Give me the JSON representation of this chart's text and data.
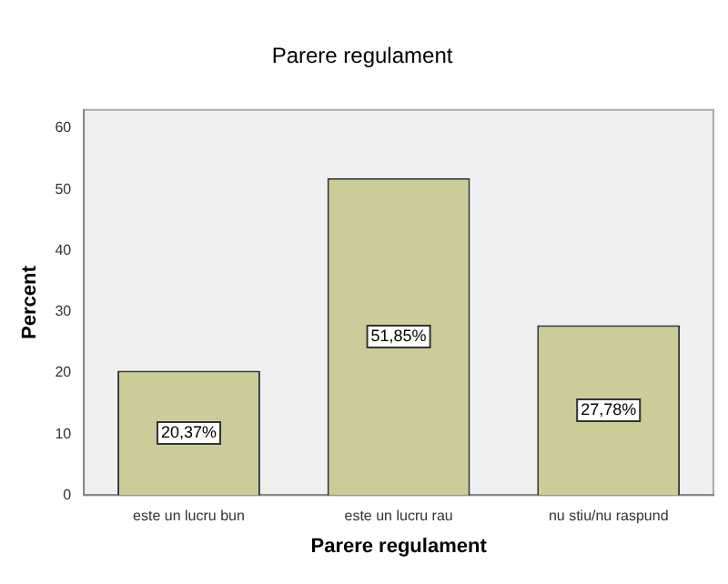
{
  "chart_data": {
    "type": "bar",
    "title": "Parere regulament",
    "xlabel": "Parere regulament",
    "ylabel": "Percent",
    "categories": [
      "este un lucru bun",
      "este un lucru rau",
      "nu stiu/nu raspund"
    ],
    "values": [
      20.37,
      51.85,
      27.78
    ],
    "value_labels": [
      "20,37%",
      "51,85%",
      "27,78%"
    ],
    "color": "#cccc99",
    "ylim": [
      0,
      63
    ],
    "yticks": [
      0,
      10,
      20,
      30,
      40,
      50,
      60
    ],
    "grid": false,
    "legend": false
  }
}
